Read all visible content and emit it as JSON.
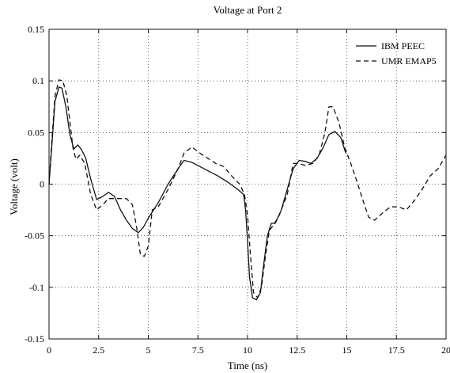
{
  "chart_data": {
    "type": "line",
    "title": "Voltage at Port 2",
    "xlabel": "Time (ns)",
    "ylabel": "Voltage (volt)",
    "xlim": [
      0,
      20
    ],
    "ylim": [
      -0.15,
      0.15
    ],
    "grid": true,
    "legend_position": "top-right",
    "xticks": [
      0,
      2.5,
      5,
      7.5,
      10,
      12.5,
      15,
      17.5,
      20
    ],
    "xtick_labels": [
      "0",
      "2.5",
      "5",
      "7.5",
      "10",
      "12.5",
      "15",
      "17.5",
      "20"
    ],
    "yticks": [
      -0.15,
      -0.1,
      -0.05,
      0,
      0.05,
      0.1,
      0.15
    ],
    "ytick_labels": [
      "-0.15",
      "-0.1",
      "-0.05",
      "0",
      "0.05",
      "0.1",
      "0.15"
    ],
    "series": [
      {
        "name": "IBM PEEC",
        "style": "solid",
        "color": "#111111",
        "x": [
          0,
          0.15,
          0.3,
          0.5,
          0.65,
          0.85,
          1.05,
          1.25,
          1.45,
          1.65,
          1.85,
          2.1,
          2.4,
          2.7,
          3.0,
          3.3,
          3.6,
          3.9,
          4.2,
          4.5,
          4.75,
          5.0,
          5.5,
          6.0,
          6.5,
          6.8,
          7.2,
          7.6,
          8.0,
          8.5,
          9.0,
          9.5,
          9.8,
          9.9,
          10.0,
          10.1,
          10.25,
          10.45,
          10.65,
          10.8,
          11.0,
          11.2,
          11.4,
          11.7,
          12.0,
          12.3,
          12.6,
          12.9,
          13.2,
          13.5,
          13.8,
          14.1,
          14.4,
          14.7,
          14.95
        ],
        "y": [
          0,
          0.04,
          0.08,
          0.094,
          0.093,
          0.075,
          0.048,
          0.034,
          0.038,
          0.033,
          0.025,
          0.005,
          -0.015,
          -0.012,
          -0.008,
          -0.012,
          -0.025,
          -0.035,
          -0.043,
          -0.047,
          -0.042,
          -0.033,
          -0.018,
          0.0,
          0.015,
          0.023,
          0.021,
          0.017,
          0.013,
          0.008,
          0.002,
          -0.005,
          -0.01,
          -0.025,
          -0.055,
          -0.09,
          -0.11,
          -0.112,
          -0.105,
          -0.08,
          -0.05,
          -0.038,
          -0.038,
          -0.025,
          -0.005,
          0.015,
          0.023,
          0.022,
          0.02,
          0.025,
          0.035,
          0.048,
          0.051,
          0.045,
          0.03
        ]
      },
      {
        "name": "UMR EMAP5",
        "style": "dashed",
        "color": "#111111",
        "x": [
          0,
          0.15,
          0.3,
          0.5,
          0.7,
          0.9,
          1.05,
          1.2,
          1.35,
          1.55,
          1.8,
          2.1,
          2.4,
          2.7,
          3.0,
          3.3,
          3.6,
          3.9,
          4.2,
          4.4,
          4.6,
          4.8,
          5.0,
          5.2,
          5.5,
          6.0,
          6.5,
          6.8,
          7.2,
          7.6,
          8.0,
          8.4,
          8.8,
          9.2,
          9.6,
          9.85,
          10.0,
          10.15,
          10.3,
          10.5,
          10.7,
          10.9,
          11.1,
          11.3,
          11.6,
          12.0,
          12.3,
          12.6,
          12.9,
          13.3,
          13.6,
          13.9,
          14.1,
          14.3,
          14.6,
          14.9,
          15.2,
          15.5,
          15.8,
          16.1,
          16.4,
          16.8,
          17.2,
          17.6,
          18.0,
          18.4,
          18.8,
          19.2,
          19.6,
          20.0
        ],
        "y": [
          0,
          0.045,
          0.085,
          0.101,
          0.1,
          0.085,
          0.06,
          0.036,
          0.024,
          0.028,
          0.02,
          -0.01,
          -0.025,
          -0.02,
          -0.014,
          -0.014,
          -0.014,
          -0.014,
          -0.02,
          -0.04,
          -0.068,
          -0.07,
          -0.06,
          -0.025,
          -0.022,
          -0.005,
          0.015,
          0.03,
          0.036,
          0.03,
          0.025,
          0.02,
          0.017,
          0.008,
          0.0,
          -0.01,
          -0.03,
          -0.07,
          -0.105,
          -0.11,
          -0.1,
          -0.07,
          -0.045,
          -0.04,
          -0.03,
          -0.01,
          0.02,
          0.02,
          0.018,
          0.02,
          0.028,
          0.05,
          0.075,
          0.075,
          0.06,
          0.035,
          0.02,
          0.003,
          -0.015,
          -0.032,
          -0.035,
          -0.028,
          -0.022,
          -0.022,
          -0.025,
          -0.016,
          -0.005,
          0.008,
          0.015,
          0.028
        ]
      }
    ]
  }
}
